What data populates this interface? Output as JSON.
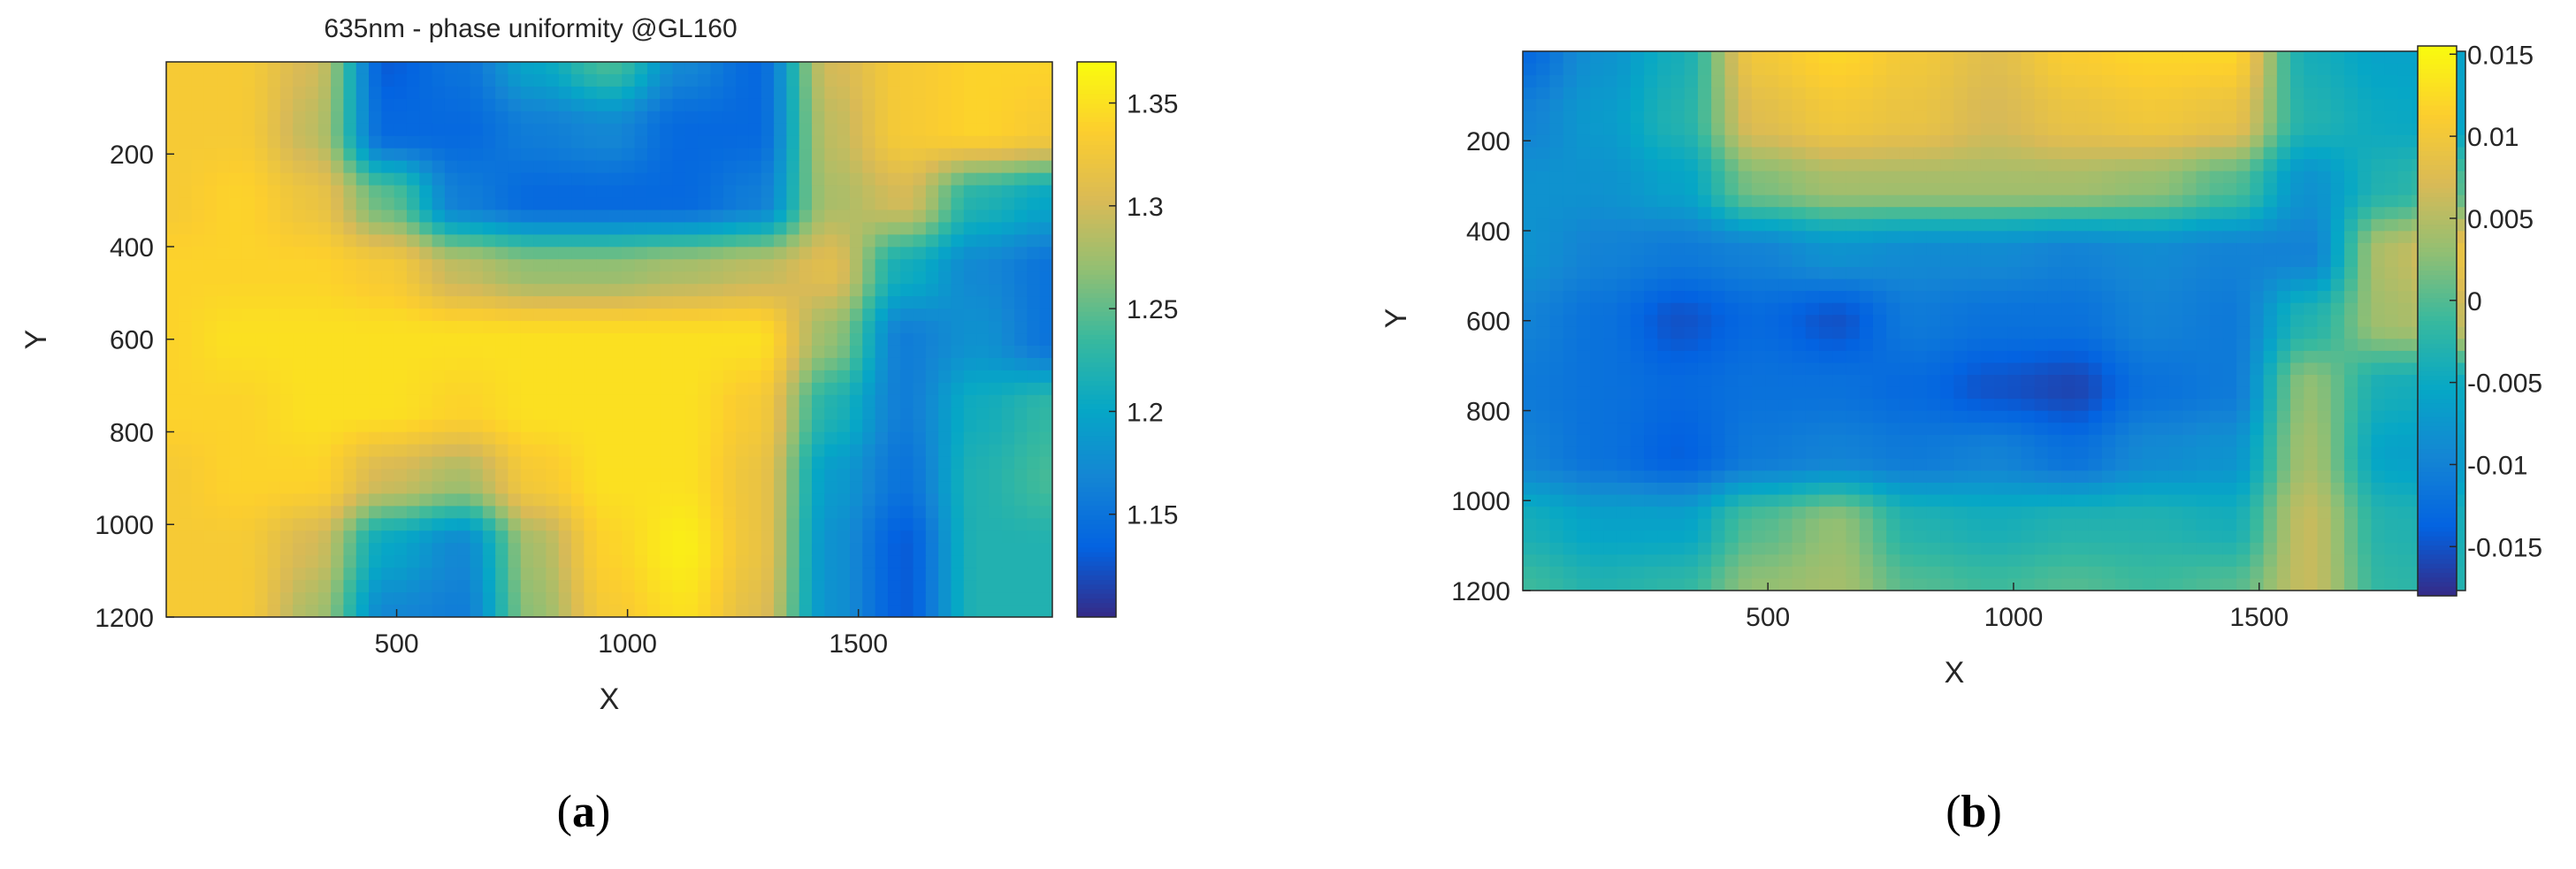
{
  "colormap": {
    "name": "parula",
    "stops": [
      "#352a87",
      "#0363e1",
      "#1485d4",
      "#06a7c6",
      "#38b99e",
      "#92bf73",
      "#d9ba56",
      "#fcce2e",
      "#f9fb0e"
    ]
  },
  "chart_data": [
    {
      "type": "heatmap",
      "panel_label": "(a)",
      "panel_letter": "a",
      "title": "635nm - phase uniformity @GL160",
      "xlabel": "X",
      "ylabel": "Y",
      "xlim": [
        1,
        1920
      ],
      "ylim": [
        1,
        1200
      ],
      "y_direction": "top-down",
      "x_ticks": [
        "500",
        "1000",
        "1500"
      ],
      "y_ticks": [
        "200",
        "400",
        "600",
        "800",
        "1000",
        "1200"
      ],
      "colorbar": {
        "range": [
          1.1,
          1.37
        ],
        "ticks": [
          "1.15",
          "1.2",
          "1.25",
          "1.3",
          "1.35"
        ]
      },
      "grid": {
        "x": [
          0,
          160,
          320,
          480,
          640,
          800,
          960,
          1120,
          1280,
          1440,
          1600,
          1760,
          1920
        ],
        "y": [
          0,
          150,
          300,
          450,
          600,
          750,
          900,
          1050,
          1200
        ],
        "values": [
          [
            1.33,
            1.33,
            1.3,
            1.13,
            1.15,
            1.2,
            1.24,
            1.17,
            1.14,
            1.3,
            1.33,
            1.34,
            1.34
          ],
          [
            1.33,
            1.33,
            1.29,
            1.14,
            1.14,
            1.16,
            1.17,
            1.14,
            1.14,
            1.29,
            1.33,
            1.34,
            1.33
          ],
          [
            1.33,
            1.34,
            1.32,
            1.25,
            1.16,
            1.14,
            1.14,
            1.14,
            1.16,
            1.28,
            1.3,
            1.22,
            1.2
          ],
          [
            1.34,
            1.34,
            1.34,
            1.33,
            1.29,
            1.27,
            1.27,
            1.28,
            1.29,
            1.31,
            1.21,
            1.17,
            1.15
          ],
          [
            1.34,
            1.35,
            1.35,
            1.35,
            1.35,
            1.35,
            1.35,
            1.35,
            1.35,
            1.27,
            1.16,
            1.18,
            1.15
          ],
          [
            1.34,
            1.34,
            1.35,
            1.35,
            1.34,
            1.35,
            1.35,
            1.35,
            1.33,
            1.22,
            1.16,
            1.21,
            1.23
          ],
          [
            1.33,
            1.34,
            1.34,
            1.3,
            1.28,
            1.33,
            1.35,
            1.35,
            1.32,
            1.19,
            1.15,
            1.22,
            1.24
          ],
          [
            1.33,
            1.33,
            1.3,
            1.2,
            1.17,
            1.28,
            1.34,
            1.36,
            1.32,
            1.18,
            1.13,
            1.22,
            1.22
          ],
          [
            1.33,
            1.33,
            1.28,
            1.17,
            1.16,
            1.27,
            1.33,
            1.35,
            1.31,
            1.18,
            1.13,
            1.22,
            1.22
          ]
        ]
      }
    },
    {
      "type": "heatmap",
      "panel_label": "(b)",
      "panel_letter": "b",
      "title": "",
      "xlabel": "X",
      "ylabel": "Y",
      "xlim": [
        1,
        1920
      ],
      "ylim": [
        1,
        1200
      ],
      "y_direction": "top-down",
      "x_ticks": [
        "500",
        "1000",
        "1500"
      ],
      "y_ticks": [
        "200",
        "400",
        "600",
        "800",
        "1000",
        "1200"
      ],
      "colorbar": {
        "range": [
          -0.018,
          0.0155
        ],
        "ticks": [
          "0.015",
          "0.01",
          "0.005",
          "0",
          "-0.005",
          "-0.01",
          "-0.015"
        ]
      },
      "grid": {
        "x": [
          0,
          160,
          320,
          480,
          640,
          800,
          960,
          1120,
          1280,
          1440,
          1600,
          1760,
          1920
        ],
        "y": [
          0,
          150,
          300,
          450,
          600,
          750,
          900,
          1050,
          1200
        ],
        "values": [
          [
            -0.013,
            -0.008,
            -0.004,
            0.01,
            0.012,
            0.01,
            0.008,
            0.011,
            0.012,
            0.012,
            -0.004,
            -0.006,
            -0.006
          ],
          [
            -0.01,
            -0.007,
            -0.003,
            0.008,
            0.01,
            0.009,
            0.007,
            0.009,
            0.01,
            0.009,
            -0.003,
            -0.005,
            -0.006
          ],
          [
            -0.008,
            -0.008,
            -0.006,
            0.002,
            0.004,
            0.004,
            0.004,
            0.004,
            0.003,
            0.0,
            -0.008,
            -0.003,
            0.0
          ],
          [
            -0.008,
            -0.01,
            -0.011,
            -0.01,
            -0.008,
            -0.009,
            -0.009,
            -0.01,
            -0.009,
            -0.01,
            -0.01,
            0.005,
            0.009
          ],
          [
            -0.01,
            -0.012,
            -0.015,
            -0.013,
            -0.015,
            -0.011,
            -0.012,
            -0.012,
            -0.01,
            -0.011,
            -0.003,
            0.004,
            0.006
          ],
          [
            -0.011,
            -0.012,
            -0.013,
            -0.012,
            -0.012,
            -0.013,
            -0.015,
            -0.016,
            -0.012,
            -0.011,
            0.003,
            -0.004,
            -0.005
          ],
          [
            -0.01,
            -0.012,
            -0.014,
            -0.011,
            -0.01,
            -0.011,
            -0.01,
            -0.012,
            -0.009,
            -0.008,
            0.004,
            -0.006,
            -0.007
          ],
          [
            -0.004,
            -0.006,
            -0.006,
            0.0,
            0.003,
            -0.003,
            -0.004,
            -0.003,
            -0.003,
            -0.004,
            0.006,
            -0.003,
            -0.004
          ],
          [
            -0.001,
            -0.003,
            -0.002,
            0.003,
            0.004,
            0.0,
            -0.001,
            0.0,
            -0.001,
            0.0,
            0.006,
            -0.002,
            -0.003
          ]
        ]
      }
    }
  ]
}
